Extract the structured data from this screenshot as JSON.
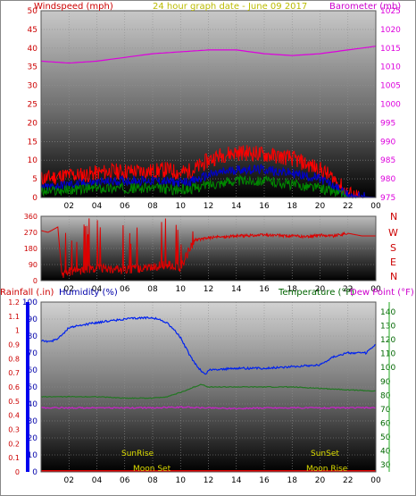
{
  "header": {
    "wind_label": "Windspeed (mph)",
    "graph_title": "24 hour graph date - June 09 2017",
    "baro_label": "Barometer (mb)"
  },
  "colors": {
    "wind_gust": "#ff0000",
    "wind_avg": "#0000cc",
    "wind_low": "#008800",
    "barometer": "#dd00dd",
    "direction": "#dd0000",
    "humidity": "#0022ee",
    "temperature": "#227722",
    "dewpoint": "#cc22cc",
    "axis_red": "#cc0000",
    "axis_green": "#006600",
    "axis_blue": "#0000aa",
    "sun_moon": "#dddd00"
  },
  "panel3_header": {
    "rain_label": "Rainfall (.in)",
    "humidity_label": "Humidity (%)",
    "temp_label": "Temperature (°F)",
    "dew_label": "Dew Point (°F)"
  },
  "compass": [
    "N",
    "W",
    "S",
    "E",
    "N"
  ],
  "events": {
    "sunrise": "SunRise",
    "sunset": "SunSet",
    "moonset": "Moon Set",
    "moonrise": "Moon Rise"
  },
  "chart_data": [
    {
      "type": "line",
      "title": "24 hour graph date - June 09 2017",
      "x_ticks": [
        "02",
        "04",
        "06",
        "08",
        "10",
        "12",
        "14",
        "16",
        "18",
        "20",
        "22",
        "00"
      ],
      "y_left": {
        "label": "Windspeed (mph)",
        "ticks": [
          0,
          5,
          10,
          15,
          20,
          25,
          30,
          35,
          40,
          45,
          50
        ],
        "range": [
          0,
          50
        ]
      },
      "y_right": {
        "label": "Barometer (mb)",
        "ticks": [
          975,
          980,
          985,
          990,
          995,
          1000,
          1005,
          1010,
          1015,
          1020,
          1025
        ],
        "range": [
          975,
          1025
        ]
      },
      "series": [
        {
          "name": "Barometer (mb)",
          "x": [
            0,
            2,
            4,
            6,
            8,
            10,
            12,
            14,
            16,
            18,
            20,
            22,
            24
          ],
          "y": [
            1011.5,
            1011,
            1011.5,
            1012.5,
            1013.5,
            1014,
            1014.5,
            1014.5,
            1013.5,
            1013,
            1013.5,
            1014.5,
            1015.5
          ]
        },
        {
          "name": "gust",
          "x": [
            0,
            1,
            2,
            3,
            4,
            5,
            6,
            7,
            8,
            9,
            10,
            11,
            12,
            13,
            14,
            15,
            16,
            17,
            18,
            19,
            20,
            21,
            22,
            23,
            24
          ],
          "y": [
            5,
            5.5,
            6,
            6,
            6.5,
            7,
            7,
            7,
            7,
            7.5,
            6.5,
            7.5,
            10,
            11.5,
            12,
            12,
            11.5,
            11,
            10.5,
            9,
            7.5,
            5,
            1,
            0,
            0
          ]
        },
        {
          "name": "average",
          "x": [
            0,
            2,
            4,
            6,
            8,
            10,
            11,
            12,
            14,
            16,
            18,
            20,
            21,
            22,
            24
          ],
          "y": [
            2.5,
            3.5,
            4,
            4.5,
            4.5,
            4,
            4.5,
            6,
            7.5,
            7.5,
            6.5,
            5,
            3,
            0.5,
            0
          ]
        },
        {
          "name": "low",
          "x": [
            0,
            2,
            4,
            6,
            8,
            10,
            11,
            12,
            14,
            16,
            18,
            20,
            21,
            22,
            24
          ],
          "y": [
            1.5,
            2,
            2.5,
            2.5,
            2.5,
            2,
            2.5,
            3.5,
            4.5,
            4.5,
            3.5,
            2.5,
            1.5,
            0,
            0
          ]
        }
      ]
    },
    {
      "type": "line",
      "title": "",
      "x_ticks": [
        "02",
        "04",
        "06",
        "08",
        "10",
        "12",
        "14",
        "16",
        "18",
        "20",
        "22",
        "00"
      ],
      "y_left": {
        "ticks": [
          0,
          90,
          180,
          270,
          360
        ],
        "range": [
          0,
          360
        ]
      },
      "series": [
        {
          "name": "direction",
          "x": [
            0,
            0.5,
            1.2,
            1.5,
            2,
            4,
            6,
            8,
            9,
            10,
            10.5,
            11,
            11.5,
            12,
            14,
            16,
            18,
            19,
            20,
            21,
            22,
            23,
            24
          ],
          "y": [
            280,
            270,
            300,
            30,
            50,
            70,
            60,
            75,
            90,
            70,
            150,
            230,
            230,
            240,
            250,
            255,
            250,
            245,
            255,
            250,
            265,
            250,
            250
          ]
        }
      ]
    },
    {
      "type": "line",
      "title": "",
      "x_ticks": [
        "02",
        "04",
        "06",
        "08",
        "10",
        "12",
        "14",
        "16",
        "18",
        "20",
        "22",
        "00"
      ],
      "y_left_rain": {
        "label": "Rainfall (.in)",
        "ticks": [
          "0",
          "0.1",
          "0.2",
          "0.3",
          "0.4",
          "0.5",
          "0.6",
          "0.7",
          "0.8",
          "0.9",
          "1",
          "1.1",
          "1.2"
        ],
        "range": [
          0,
          1.2
        ]
      },
      "y_left_humidity": {
        "label": "Humidity (%)",
        "ticks": [
          0,
          10,
          20,
          30,
          40,
          50,
          60,
          70,
          80,
          90,
          100
        ],
        "range": [
          0,
          100
        ]
      },
      "y_right": {
        "label": "Temperature (°F)",
        "ticks": [
          30,
          40,
          50,
          60,
          70,
          80,
          90,
          100,
          110,
          120,
          130,
          140
        ],
        "range": [
          25,
          147
        ]
      },
      "series": [
        {
          "name": "Humidity (%)",
          "x": [
            0,
            0.8,
            1.3,
            2,
            4,
            6,
            8,
            9,
            9.5,
            10,
            10.7,
            11.3,
            11.8,
            12,
            14,
            16,
            18,
            20,
            21,
            22,
            23.3,
            24
          ],
          "y": [
            77,
            77,
            79,
            85,
            88,
            90,
            91,
            88,
            84,
            79,
            68,
            61,
            57,
            60,
            61,
            61,
            62,
            63,
            68,
            70,
            70,
            75
          ]
        },
        {
          "name": "Temperature (°F)",
          "x": [
            0,
            2,
            4,
            6,
            8,
            9,
            10,
            11,
            11.5,
            12,
            14,
            16,
            18,
            20,
            22,
            24
          ],
          "y": [
            79,
            79,
            79,
            78,
            78,
            79,
            82,
            86,
            88,
            86,
            86,
            86,
            86,
            85,
            84,
            83
          ]
        },
        {
          "name": "Dew Point (°F)",
          "x": [
            0,
            2,
            4,
            6,
            8,
            10,
            12,
            14,
            16,
            18,
            20,
            22,
            24
          ],
          "y": [
            71,
            71,
            71,
            71,
            71,
            71.5,
            71,
            70.5,
            71,
            71,
            71,
            71,
            71
          ]
        },
        {
          "name": "Rainfall (.in)",
          "x": [
            0,
            24
          ],
          "y": [
            0,
            0
          ]
        }
      ],
      "events": [
        {
          "label": "SunRise",
          "x": 7.5
        },
        {
          "label": "SunSet",
          "x": 19.7
        },
        {
          "label": "Moon Set",
          "x": 9.5
        },
        {
          "label": "Moon Rise",
          "x": 20
        }
      ]
    }
  ]
}
